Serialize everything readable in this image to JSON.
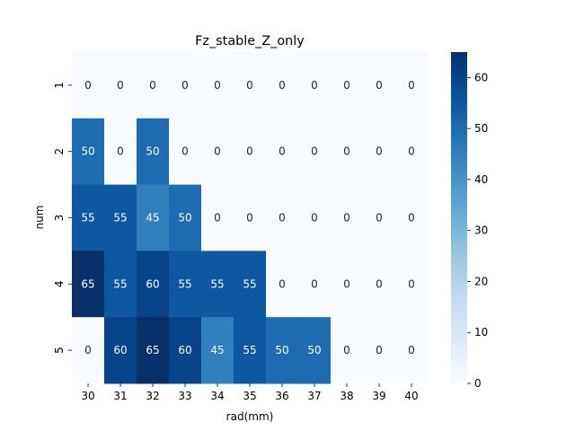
{
  "chart_data": {
    "type": "heatmap",
    "title": "Fz_stable_Z_only",
    "xlabel": "rad(mm)",
    "ylabel": "num",
    "x": [
      "30",
      "31",
      "32",
      "33",
      "34",
      "35",
      "36",
      "37",
      "38",
      "39",
      "40"
    ],
    "y": [
      "1",
      "2",
      "3",
      "4",
      "5"
    ],
    "values": [
      [
        0,
        0,
        0,
        0,
        0,
        0,
        0,
        0,
        0,
        0,
        0
      ],
      [
        50,
        0,
        50,
        0,
        0,
        0,
        0,
        0,
        0,
        0,
        0
      ],
      [
        55,
        55,
        45,
        50,
        0,
        0,
        0,
        0,
        0,
        0,
        0
      ],
      [
        65,
        55,
        60,
        55,
        55,
        55,
        0,
        0,
        0,
        0,
        0
      ],
      [
        0,
        60,
        65,
        60,
        45,
        55,
        50,
        50,
        0,
        0,
        0
      ]
    ],
    "colorbar": {
      "vmin": 0,
      "vmax": 65,
      "ticks": [
        "0",
        "10",
        "20",
        "30",
        "40",
        "50",
        "60"
      ],
      "colormap": "Blues",
      "colors": [
        "#f7fbff",
        "#deebf7",
        "#c6dbef",
        "#9ecae1",
        "#6baed6",
        "#4292c6",
        "#2171b5",
        "#08519c",
        "#08306b"
      ]
    },
    "annotations": "cell values shown",
    "grid": false
  }
}
